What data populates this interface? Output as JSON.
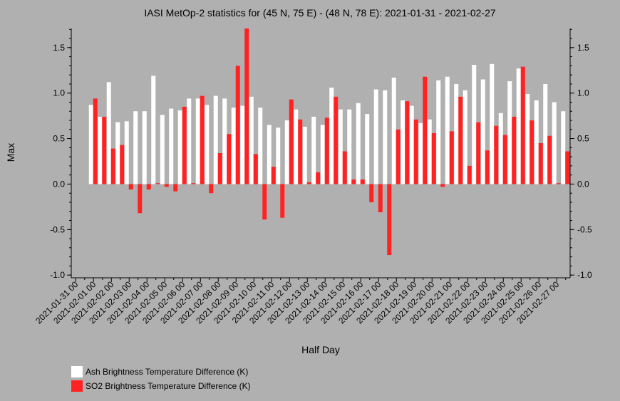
{
  "chart_data": {
    "type": "bar",
    "title": "IASI MetOp-2 statistics for (45 N, 75 E) - (48 N, 78 E): 2021-01-31 - 2021-02-27",
    "xlabel": "Half Day",
    "ylabel": "Max",
    "ylim": [
      -1.03,
      1.71
    ],
    "yticks": [
      -1.0,
      -0.5,
      0.0,
      0.5,
      1.0,
      1.5
    ],
    "ytick_labels": [
      "-1.0",
      "-0.5",
      "0.0",
      "0.5",
      "1.0",
      "1.5"
    ],
    "legend_position": "bottom-left",
    "grid": false,
    "categories": [
      "2021-01-31 00",
      "2021-01-31 12",
      "2021-02-01 00",
      "2021-02-01 12",
      "2021-02-02 00",
      "2021-02-02 12",
      "2021-02-03 00",
      "2021-02-03 12",
      "2021-02-04 00",
      "2021-02-04 12",
      "2021-02-05 00",
      "2021-02-05 12",
      "2021-02-06 00",
      "2021-02-06 12",
      "2021-02-07 00",
      "2021-02-07 12",
      "2021-02-08 00",
      "2021-02-08 12",
      "2021-02-09 00",
      "2021-02-09 12",
      "2021-02-10 00",
      "2021-02-10 12",
      "2021-02-11 00",
      "2021-02-11 12",
      "2021-02-12 00",
      "2021-02-12 12",
      "2021-02-13 00",
      "2021-02-13 12",
      "2021-02-14 00",
      "2021-02-14 12",
      "2021-02-15 00",
      "2021-02-15 12",
      "2021-02-16 00",
      "2021-02-16 12",
      "2021-02-17 00",
      "2021-02-17 12",
      "2021-02-18 00",
      "2021-02-18 12",
      "2021-02-19 00",
      "2021-02-19 12",
      "2021-02-20 00",
      "2021-02-20 12",
      "2021-02-21 00",
      "2021-02-21 12",
      "2021-02-22 00",
      "2021-02-22 12",
      "2021-02-23 00",
      "2021-02-23 12",
      "2021-02-24 00",
      "2021-02-24 12",
      "2021-02-25 00",
      "2021-02-25 12",
      "2021-02-26 00",
      "2021-02-26 12",
      "2021-02-27 00",
      "2021-02-27 12"
    ],
    "xtick_labels": [
      "2021-01-31 00",
      "2021-02-01 00",
      "2021-02-02 00",
      "2021-02-03 00",
      "2021-02-04 00",
      "2021-02-05 00",
      "2021-02-06 00",
      "2021-02-07 00",
      "2021-02-08 00",
      "2021-02-09 00",
      "2021-02-10 00",
      "2021-02-11 00",
      "2021-02-12 00",
      "2021-02-13 00",
      "2021-02-14 00",
      "2021-02-15 00",
      "2021-02-16 00",
      "2021-02-17 00",
      "2021-02-18 00",
      "2021-02-19 00",
      "2021-02-20 00",
      "2021-02-21 00",
      "2021-02-22 00",
      "2021-02-23 00",
      "2021-02-24 00",
      "2021-02-25 00",
      "2021-02-26 00",
      "2021-02-27 00"
    ],
    "series": [
      {
        "name": "Ash Brightness Temperature Difference (K)",
        "color": "#ffffff",
        "values": [
          null,
          null,
          0.87,
          0.74,
          1.12,
          0.68,
          0.69,
          0.8,
          0.8,
          1.19,
          0.76,
          0.83,
          0.81,
          0.94,
          0.94,
          0.87,
          0.97,
          0.94,
          0.84,
          0.86,
          0.96,
          0.84,
          0.65,
          0.62,
          0.7,
          0.82,
          0.63,
          0.74,
          0.65,
          1.06,
          0.82,
          0.82,
          0.89,
          0.77,
          1.04,
          1.03,
          1.17,
          0.92,
          0.86,
          0.67,
          0.71,
          1.14,
          1.18,
          1.1,
          1.03,
          1.31,
          1.15,
          1.32,
          0.78,
          1.13,
          1.27,
          0.99,
          0.92,
          1.1,
          0.9,
          0.8
        ]
      },
      {
        "name": "SO2 Brightness Temperature Difference (K)",
        "color": "#ff2222",
        "values": [
          null,
          null,
          0.94,
          0.74,
          0.39,
          0.43,
          -0.06,
          -0.32,
          -0.06,
          0.01,
          -0.03,
          -0.08,
          0.85,
          0.01,
          0.97,
          -0.1,
          0.34,
          0.55,
          1.3,
          1.71,
          0.33,
          -0.39,
          0.19,
          -0.37,
          0.93,
          0.71,
          0.02,
          0.13,
          0.73,
          0.96,
          0.36,
          0.05,
          0.05,
          -0.2,
          -0.31,
          -0.78,
          0.6,
          0.91,
          0.71,
          1.18,
          0.56,
          -0.03,
          0.58,
          0.96,
          0.2,
          0.68,
          0.37,
          0.64,
          0.54,
          0.74,
          1.29,
          0.7,
          0.45,
          0.53,
          0.01,
          0.36
        ]
      }
    ]
  },
  "legend": {
    "items": [
      {
        "label": "Ash Brightness Temperature Difference (K)",
        "color": "#ffffff"
      },
      {
        "label": "SO2 Brightness Temperature Difference (K)",
        "color": "#ff2222"
      }
    ]
  }
}
